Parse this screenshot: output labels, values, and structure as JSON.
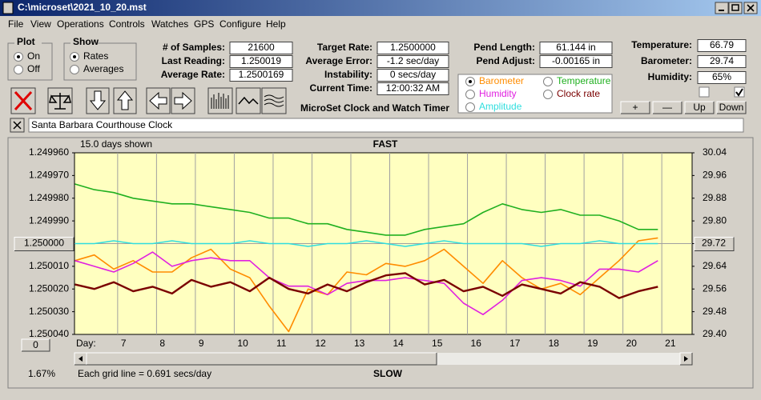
{
  "window": {
    "title": "C:\\microset\\2021_10_20.mst",
    "menu": [
      "File",
      "View",
      "Operations",
      "Controls",
      "Watches",
      "GPS",
      "Configure",
      "Help"
    ]
  },
  "plot_group": {
    "title": "Plot",
    "options": [
      "On",
      "Off"
    ]
  },
  "show_group": {
    "title": "Show",
    "options": [
      "Rates",
      "Averages"
    ]
  },
  "readings": [
    {
      "label": "# of Samples:",
      "value": "21600"
    },
    {
      "label": "Last Reading:",
      "value": "1.250019"
    },
    {
      "label": "Average Rate:",
      "value": "1.2500169"
    }
  ],
  "timing": [
    {
      "label": "Target Rate:",
      "value": "1.2500000"
    },
    {
      "label": "Average Error:",
      "value": "-1.2 sec/day"
    },
    {
      "label": "Instability:",
      "value": "0 secs/day"
    },
    {
      "label": "Current Time:",
      "value": "12:00:32 AM"
    }
  ],
  "pendulum": [
    {
      "label": "Pend Length:",
      "value": "61.144 in"
    },
    {
      "label": "Pend Adjust:",
      "value": "-0.00165 in"
    }
  ],
  "environment": [
    {
      "label": "Temperature:",
      "value": "66.79"
    },
    {
      "label": "Barometer:",
      "value": "29.74"
    },
    {
      "label": "Humidity:",
      "value": "65%"
    }
  ],
  "env_buttons": [
    "+",
    "—",
    "Up",
    "Down"
  ],
  "app_name": "MicroSet Clock and Watch Timer",
  "clock_name": "Santa Barbara Courthouse Clock",
  "chart_data": {
    "type": "line",
    "top_label": "FAST",
    "bottom_label": "SLOW",
    "span_label": "15.0 days shown",
    "x_label": "Day:",
    "grid_note": "Each grid line = 0.691 secs/day",
    "zoom": "1.67%",
    "left_button": "0",
    "xlim": [
      5.89,
      21.78
    ],
    "xticks": [
      7,
      8,
      9,
      10,
      11,
      12,
      13,
      14,
      15,
      16,
      17,
      18,
      19,
      20,
      21
    ],
    "ylim": [
      1.25004,
      1.24996
    ],
    "yticks": [
      {
        "value": 1.24996,
        "label": "1.249960"
      },
      {
        "value": 1.24997,
        "label": "1.249970"
      },
      {
        "value": 1.24998,
        "label": "1.249980"
      },
      {
        "value": 1.24999,
        "label": "1.249990"
      },
      {
        "value": 1.25,
        "label": "1.250000"
      },
      {
        "value": 1.25001,
        "label": "1.250010"
      },
      {
        "value": 1.25002,
        "label": "1.250020"
      },
      {
        "value": 1.25003,
        "label": "1.250030"
      },
      {
        "value": 1.25004,
        "label": "1.250040"
      }
    ],
    "y2lim": [
      29.4,
      30.04
    ],
    "y2ticks": [
      30.04,
      29.96,
      29.88,
      {
        "value": 29.8,
        "label": "29.80"
      },
      29.72,
      29.64,
      29.56,
      29.48,
      {
        "value": 29.4,
        "label": "29.40"
      }
    ],
    "x": [
      5.9,
      6.4,
      6.9,
      7.4,
      7.9,
      8.4,
      8.9,
      9.4,
      9.9,
      10.4,
      10.9,
      11.4,
      11.9,
      12.4,
      12.9,
      13.4,
      13.9,
      14.4,
      14.9,
      15.4,
      15.9,
      16.4,
      16.9,
      17.4,
      17.9,
      18.4,
      18.9,
      19.4,
      19.9,
      20.4,
      20.9
    ],
    "series": [
      {
        "name": "Barometer",
        "color": "#ff8c00",
        "axis": "y2",
        "values": [
          29.66,
          29.68,
          29.63,
          29.66,
          29.62,
          29.62,
          29.67,
          29.7,
          29.63,
          29.6,
          29.5,
          29.41,
          29.56,
          29.54,
          29.62,
          29.61,
          29.65,
          29.64,
          29.66,
          29.7,
          29.64,
          29.58,
          29.66,
          29.6,
          29.56,
          29.58,
          29.54,
          29.6,
          29.66,
          29.73,
          29.74
        ]
      },
      {
        "name": "Temperature",
        "color": "#20b020",
        "axis": "y2",
        "values": [
          29.93,
          29.91,
          29.9,
          29.88,
          29.87,
          29.86,
          29.86,
          29.85,
          29.84,
          29.83,
          29.81,
          29.81,
          29.79,
          29.79,
          29.77,
          29.76,
          29.75,
          29.75,
          29.77,
          29.78,
          29.79,
          29.83,
          29.86,
          29.84,
          29.83,
          29.84,
          29.82,
          29.82,
          29.8,
          29.77,
          29.77
        ]
      },
      {
        "name": "Humidity",
        "color": "#e020e0",
        "axis": "y2",
        "values": [
          29.66,
          29.64,
          29.62,
          29.65,
          29.69,
          29.64,
          29.66,
          29.67,
          29.66,
          29.66,
          29.6,
          29.57,
          29.57,
          29.54,
          29.58,
          29.59,
          29.59,
          29.6,
          29.59,
          29.58,
          29.51,
          29.47,
          29.52,
          29.59,
          29.6,
          29.59,
          29.57,
          29.63,
          29.63,
          29.62,
          29.66
        ]
      },
      {
        "name": "Clock rate",
        "color": "#7a0000",
        "values": [
          1.250018,
          1.25002,
          1.250017,
          1.250021,
          1.250019,
          1.250022,
          1.250016,
          1.250019,
          1.250017,
          1.250021,
          1.250015,
          1.25002,
          1.250022,
          1.250018,
          1.250021,
          1.250017,
          1.250014,
          1.250013,
          1.250018,
          1.250016,
          1.250021,
          1.250019,
          1.250023,
          1.250018,
          1.25002,
          1.250022,
          1.250017,
          1.250019,
          1.250024,
          1.250021,
          1.250019
        ]
      },
      {
        "name": "Amplitude",
        "color": "#30dede",
        "axis": "y2",
        "values": [
          29.72,
          29.72,
          29.73,
          29.72,
          29.72,
          29.73,
          29.72,
          29.72,
          29.72,
          29.73,
          29.72,
          29.72,
          29.71,
          29.72,
          29.72,
          29.73,
          29.72,
          29.71,
          29.72,
          29.73,
          29.72,
          29.72,
          29.72,
          29.72,
          29.71,
          29.72,
          29.72,
          29.73,
          29.72,
          29.72,
          29.72
        ]
      }
    ]
  }
}
